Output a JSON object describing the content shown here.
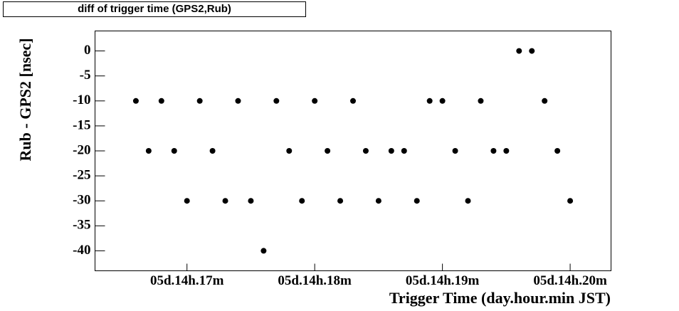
{
  "chart_data": {
    "type": "scatter",
    "title": "diff of trigger time (GPS2,Rub)",
    "x_label": "Trigger Time (day.hour.min JST)",
    "y_label": "Rub - GPS2 [nsec]",
    "color": "#000000",
    "series": [
      {
        "x": [
          16.6,
          16.7,
          16.8,
          16.9,
          17.0,
          17.1,
          17.2,
          17.3,
          17.4,
          17.5,
          17.6,
          17.7,
          17.8,
          17.9,
          18.0,
          18.1,
          18.2,
          18.3,
          18.4,
          18.5,
          18.6,
          18.7,
          18.8,
          18.9,
          19.0,
          19.1,
          19.2,
          19.3,
          19.4,
          19.5,
          19.6,
          19.7,
          19.8,
          19.9,
          20.0
        ],
        "values": [
          -10,
          -20,
          -10,
          -20,
          -30,
          -10,
          -20,
          -30,
          -10,
          -30,
          -40,
          -10,
          -20,
          -30,
          -10,
          -20,
          -30,
          -10,
          -20,
          -30,
          -20,
          -20,
          -30,
          -10,
          -10,
          -20,
          -30,
          -10,
          -20,
          -20,
          0,
          0,
          -10,
          -20,
          -30
        ]
      }
    ],
    "xlim": [
      16.28,
      20.32
    ],
    "ylim": [
      -44,
      4
    ],
    "xticks": [
      {
        "value": 17,
        "label": "05d.14h.17m"
      },
      {
        "value": 18,
        "label": "05d.14h.18m"
      },
      {
        "value": 19,
        "label": "05d.14h.19m"
      },
      {
        "value": 20,
        "label": "05d.14h.20m"
      }
    ],
    "yticks": [
      0,
      -5,
      -10,
      -15,
      -20,
      -25,
      -30,
      -35,
      -40
    ]
  }
}
